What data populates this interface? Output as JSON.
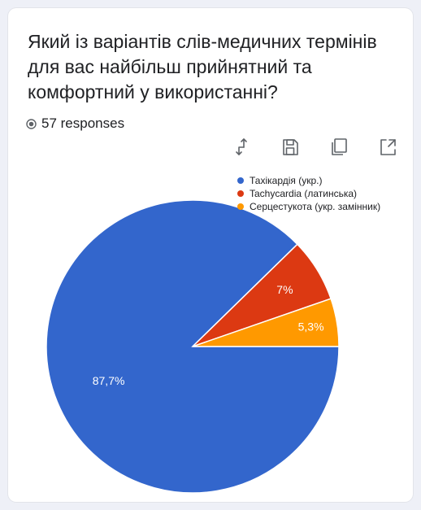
{
  "question": {
    "title": "Який  із варіантів слів-медичних термінів для вас найбільш прийнятний та комфортний у використанні?"
  },
  "responses": {
    "text": "57 responses",
    "icon": "radio-icon"
  },
  "toolbar": {
    "icons": [
      "swap-icon",
      "save-icon",
      "copy-icon",
      "expand-icon"
    ]
  },
  "chart_data": {
    "type": "pie",
    "title": "",
    "categories": [
      "Тахікардія (укр.)",
      "Tachycardia (латинська)",
      "Серцестукота (укр. замінник)"
    ],
    "values": [
      87.7,
      7,
      5.3
    ],
    "labels": [
      "87,7%",
      "7%",
      "5,3%"
    ],
    "colors": [
      "#3366cc",
      "#dc3912",
      "#ff9900"
    ],
    "legend": "top-right"
  }
}
